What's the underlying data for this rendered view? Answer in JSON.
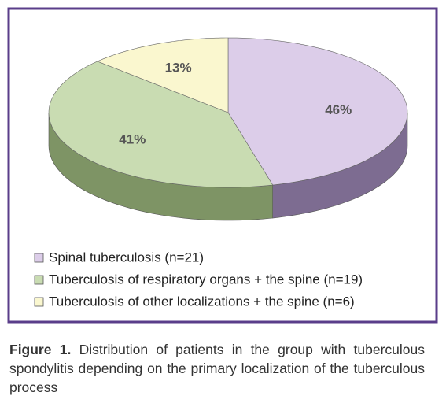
{
  "chart_data": {
    "type": "pie",
    "categories": [
      "Spinal tuberculosis (n=21)",
      "Tuberculosis of respiratory organs + the spine (n=19)",
      "Tuberculosis of other localizations + the spine (n=6)"
    ],
    "values": [
      46,
      41,
      13
    ],
    "value_labels": [
      "46%",
      "41%",
      "13%"
    ],
    "colors": [
      "#dccde9",
      "#c9dcb2",
      "#faf7cf"
    ],
    "side_colors": [
      "#7d6c91",
      "#7e9465",
      "#b5b28a"
    ],
    "legend": "bottom-left",
    "figure_label": "Figure 1.",
    "caption": "Distribution of patients in the group with tuberculous spondylitis depending on the primary localization of the tuberculous process"
  }
}
